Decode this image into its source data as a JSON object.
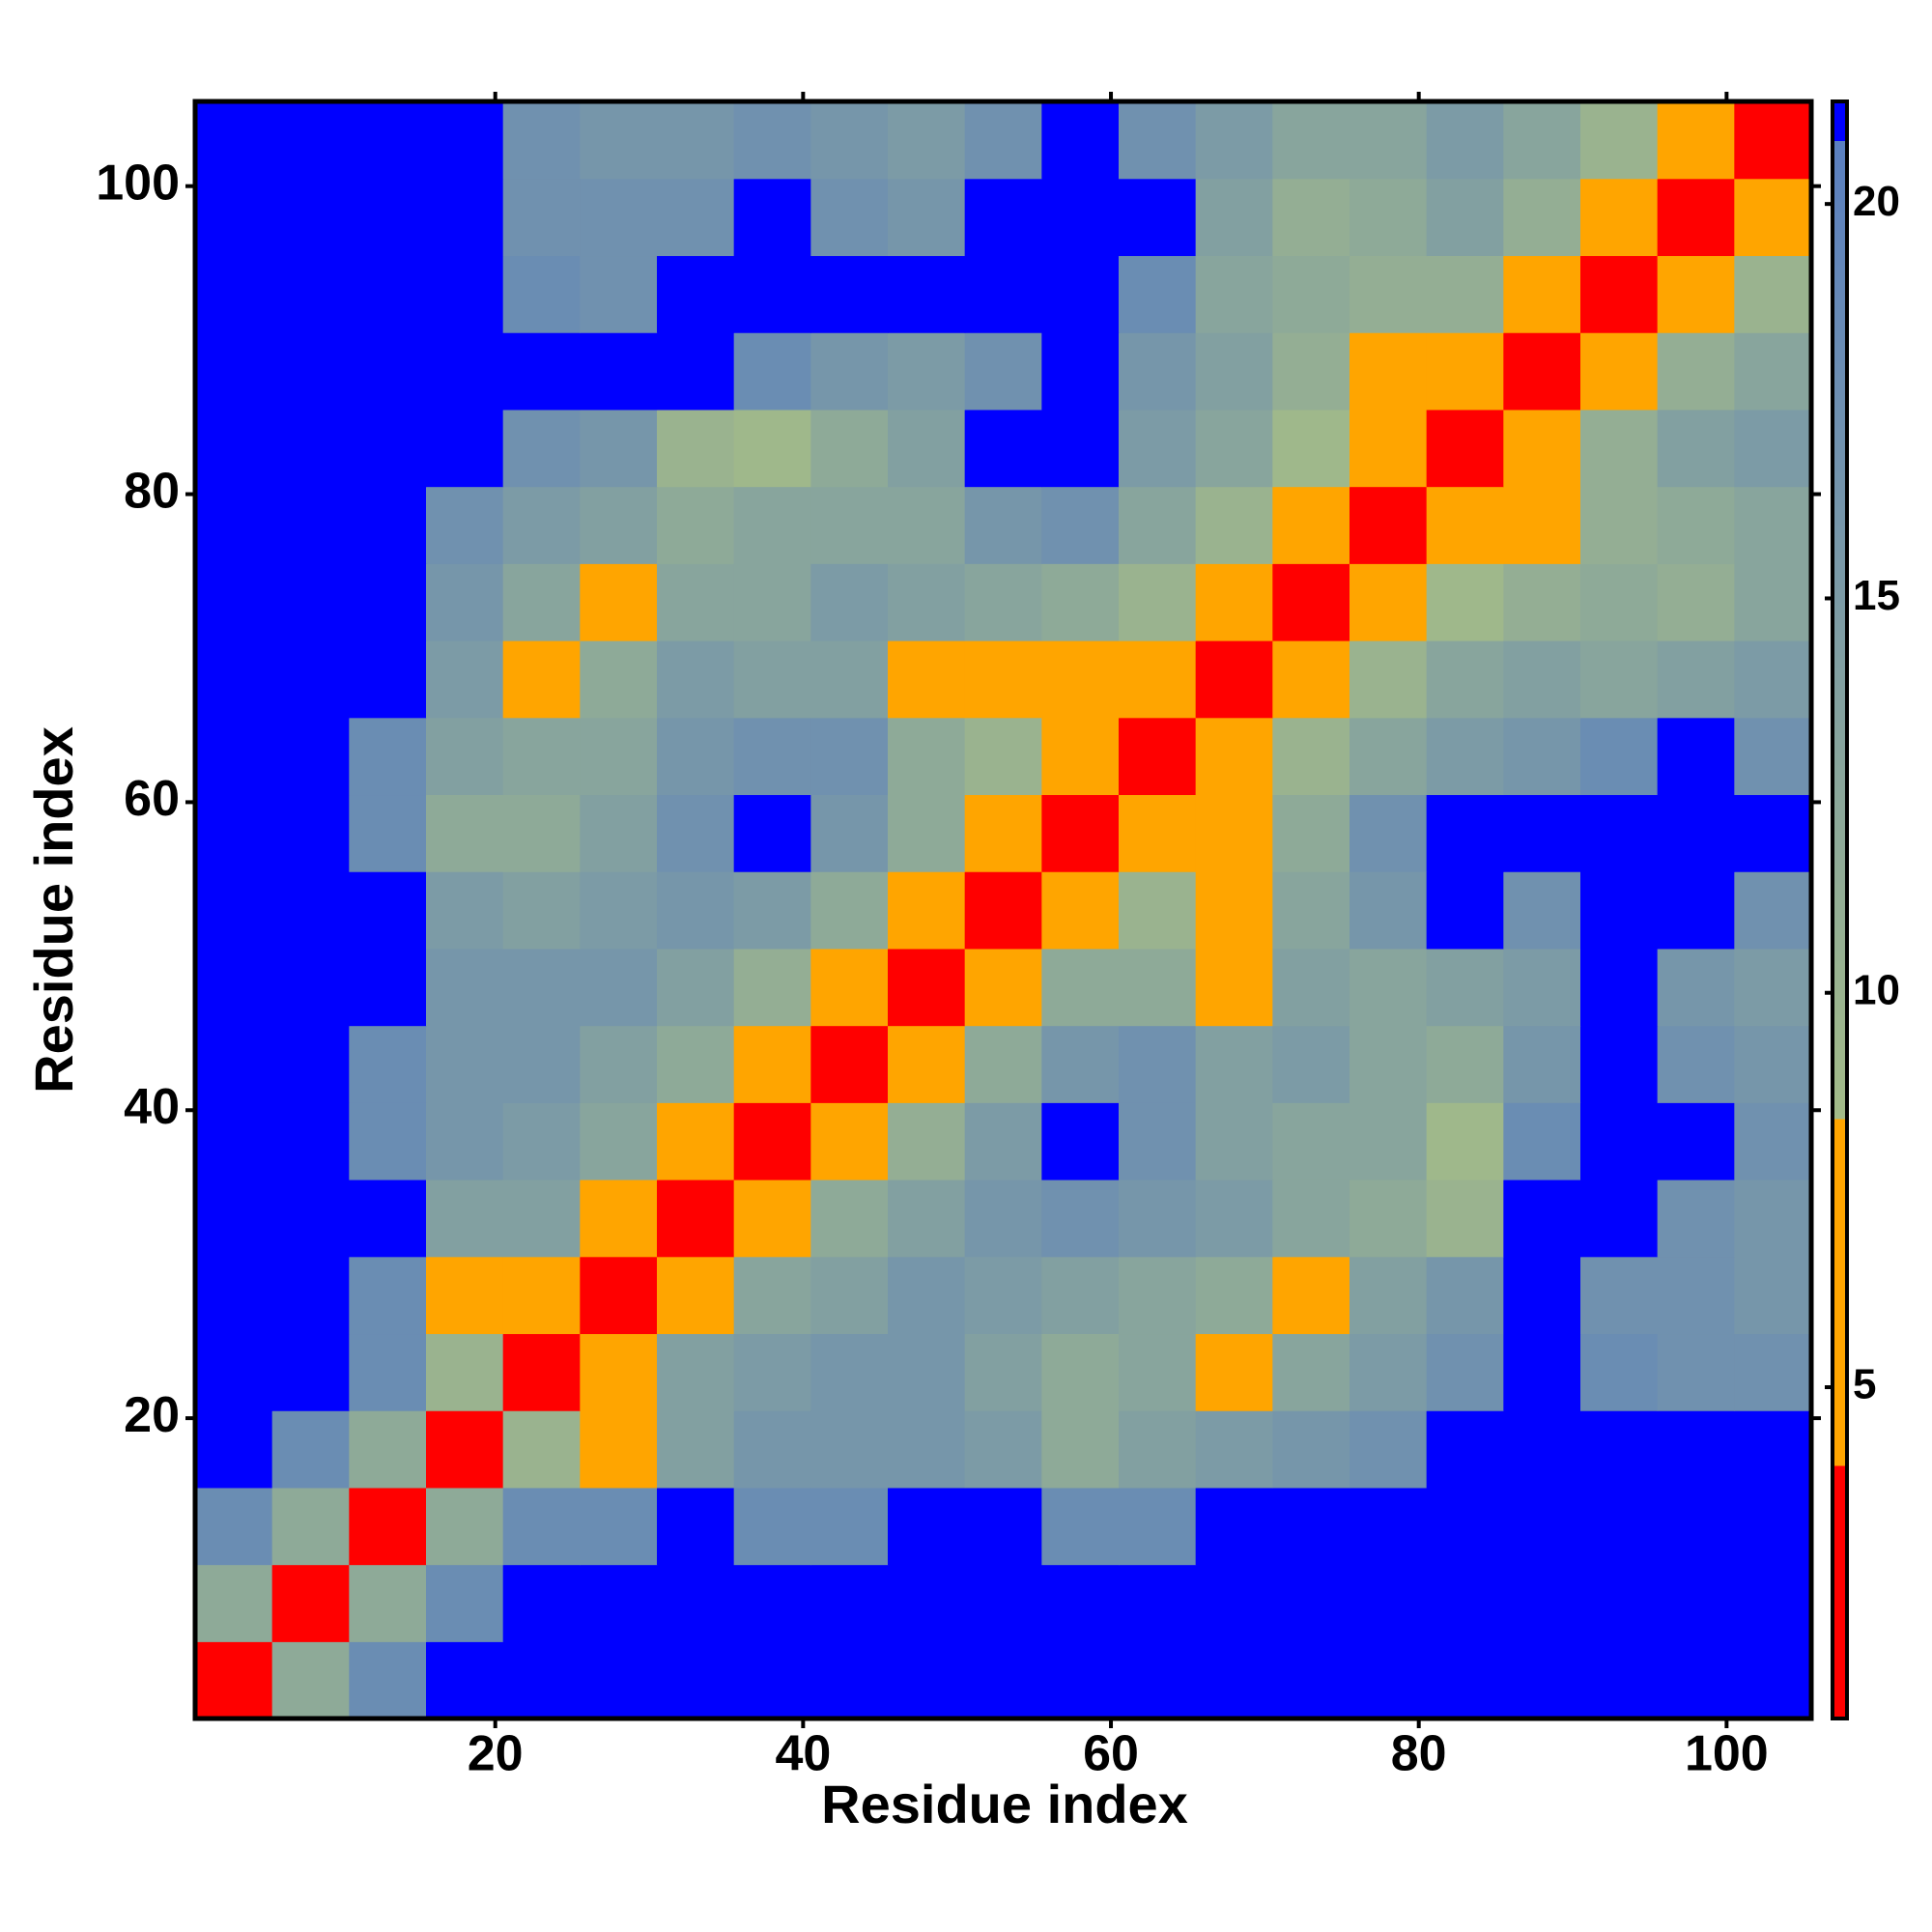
{
  "chart_data": {
    "type": "heatmap",
    "xlabel": "Residue index",
    "ylabel": "Residue index",
    "x": [
      3,
      8,
      13,
      18,
      23,
      28,
      33,
      38,
      43,
      48,
      53,
      58,
      63,
      68,
      73,
      78,
      83,
      88,
      93,
      98,
      103
    ],
    "y": [
      3,
      8,
      13,
      18,
      23,
      28,
      33,
      38,
      43,
      48,
      53,
      58,
      63,
      68,
      73,
      78,
      83,
      88,
      93,
      98,
      103
    ],
    "z": [
      [
        3,
        12,
        18,
        21,
        21,
        21,
        21,
        21,
        21,
        21,
        21,
        21,
        21,
        21,
        21,
        21,
        21,
        21,
        21,
        21,
        21
      ],
      [
        12,
        3,
        12,
        18,
        21,
        21,
        21,
        21,
        21,
        21,
        21,
        21,
        21,
        21,
        21,
        21,
        21,
        21,
        21,
        21,
        21
      ],
      [
        18,
        12,
        3,
        12,
        18,
        18,
        21,
        18,
        18,
        21,
        21,
        18,
        18,
        21,
        21,
        21,
        21,
        21,
        21,
        21,
        21
      ],
      [
        21,
        18,
        12,
        3,
        10,
        7,
        14,
        16,
        16,
        16,
        15,
        12,
        14,
        15,
        16,
        17,
        21,
        21,
        21,
        21,
        21
      ],
      [
        21,
        21,
        18,
        10,
        3,
        6,
        14,
        15,
        16,
        16,
        14,
        12,
        13,
        8,
        13,
        15,
        17,
        21,
        18,
        17,
        17
      ],
      [
        21,
        21,
        18,
        7,
        6,
        3,
        6,
        13,
        14,
        16,
        15,
        14,
        13,
        12,
        8,
        14,
        16,
        21,
        17,
        17,
        16
      ],
      [
        21,
        21,
        21,
        14,
        14,
        6,
        3,
        6,
        12,
        14,
        16,
        17,
        16,
        15,
        13,
        12,
        10,
        21,
        21,
        17,
        16
      ],
      [
        21,
        21,
        18,
        16,
        15,
        13,
        6,
        3,
        6,
        11,
        15,
        21,
        17,
        14,
        13,
        13,
        9,
        18,
        21,
        21,
        17
      ],
      [
        21,
        21,
        18,
        16,
        16,
        14,
        12,
        6,
        3,
        6,
        12,
        16,
        17,
        14,
        15,
        13,
        12,
        16,
        21,
        17,
        16
      ],
      [
        21,
        21,
        21,
        16,
        16,
        16,
        14,
        11,
        6,
        3,
        6,
        12,
        12,
        8,
        14,
        13,
        14,
        15,
        21,
        16,
        15
      ],
      [
        21,
        21,
        21,
        15,
        14,
        15,
        16,
        15,
        12,
        6,
        3,
        6,
        10,
        7,
        13,
        16,
        21,
        17,
        21,
        21,
        17
      ],
      [
        21,
        21,
        18,
        12,
        12,
        14,
        17,
        21,
        16,
        12,
        6,
        3,
        5,
        7,
        12,
        17,
        21,
        21,
        21,
        21,
        21
      ],
      [
        21,
        21,
        18,
        14,
        13,
        13,
        16,
        17,
        17,
        12,
        10,
        5,
        3,
        6,
        10,
        13,
        15,
        16,
        18,
        21,
        17
      ],
      [
        21,
        21,
        21,
        15,
        8,
        12,
        15,
        14,
        14,
        8,
        7,
        7,
        6,
        3,
        6,
        10,
        13,
        14,
        13,
        14,
        15
      ],
      [
        21,
        21,
        21,
        16,
        13,
        8,
        13,
        13,
        15,
        14,
        13,
        12,
        10,
        6,
        3,
        6,
        9,
        11,
        12,
        11,
        13
      ],
      [
        21,
        21,
        21,
        17,
        15,
        14,
        12,
        13,
        13,
        13,
        16,
        17,
        13,
        10,
        6,
        3,
        6,
        7,
        11,
        12,
        13
      ],
      [
        21,
        21,
        21,
        21,
        17,
        16,
        10,
        9,
        12,
        14,
        21,
        21,
        15,
        13,
        9,
        6,
        3,
        6,
        11,
        14,
        15
      ],
      [
        21,
        21,
        21,
        21,
        21,
        21,
        21,
        18,
        16,
        15,
        17,
        21,
        16,
        14,
        11,
        7,
        6,
        3,
        6,
        11,
        13
      ],
      [
        21,
        21,
        21,
        21,
        18,
        17,
        21,
        21,
        21,
        21,
        21,
        21,
        18,
        13,
        12,
        11,
        11,
        6,
        3,
        6,
        10
      ],
      [
        21,
        21,
        21,
        21,
        17,
        17,
        17,
        21,
        17,
        16,
        21,
        21,
        21,
        14,
        11,
        12,
        14,
        11,
        6,
        3,
        6
      ],
      [
        21,
        21,
        21,
        21,
        17,
        16,
        16,
        17,
        16,
        15,
        17,
        21,
        17,
        15,
        13,
        13,
        15,
        13,
        10,
        6,
        3
      ]
    ],
    "xlim": [
      0.5,
      105.5
    ],
    "ylim": [
      0.5,
      105.5
    ],
    "xticks": [
      20,
      40,
      60,
      80,
      100
    ],
    "yticks": [
      20,
      40,
      60,
      80,
      100
    ],
    "zlim": [
      0.8,
      21.3
    ],
    "zticks": [
      5,
      10,
      15,
      20
    ],
    "colorscale": [
      [
        0.8,
        "#ff0000"
      ],
      [
        4,
        "#ff0000"
      ],
      [
        4,
        "#ffa500"
      ],
      [
        8.4,
        "#ffa500"
      ],
      [
        8.4,
        "#a3bb88"
      ],
      [
        20.8,
        "#5a7fc0"
      ],
      [
        20.8,
        "#0000ff"
      ],
      [
        21.3,
        "#0000ff"
      ]
    ]
  }
}
